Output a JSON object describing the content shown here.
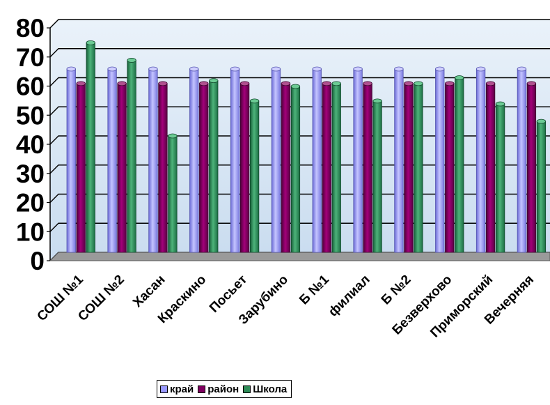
{
  "chart_data": {
    "type": "bar",
    "categories": [
      "СОШ №1",
      "СОШ №2",
      "Хасан",
      "Краскино",
      "Посьет",
      "Зарубино",
      "Б №1",
      "филиал",
      "Б №2",
      "Безверхово",
      "Приморский",
      "Вечерняя"
    ],
    "series": [
      {
        "name": "край",
        "color": "#9999FF",
        "values": [
          63,
          63,
          63,
          63,
          63,
          63,
          63,
          63,
          63,
          63,
          63,
          63
        ]
      },
      {
        "name": "район",
        "color": "#800060",
        "values": [
          58,
          58,
          58,
          58,
          58,
          58,
          58,
          58,
          58,
          58,
          58,
          58
        ]
      },
      {
        "name": "Школа",
        "color": "#2E8B57",
        "values": [
          72,
          66,
          40,
          59,
          52,
          57,
          58,
          52,
          58,
          60,
          51,
          45
        ]
      }
    ],
    "ylim": [
      0,
      80
    ],
    "yticks": [
      0,
      10,
      20,
      30,
      40,
      50,
      60,
      70,
      80
    ],
    "grid": true,
    "legend_position": "bottom",
    "plot_background": "#D9E8F5"
  }
}
